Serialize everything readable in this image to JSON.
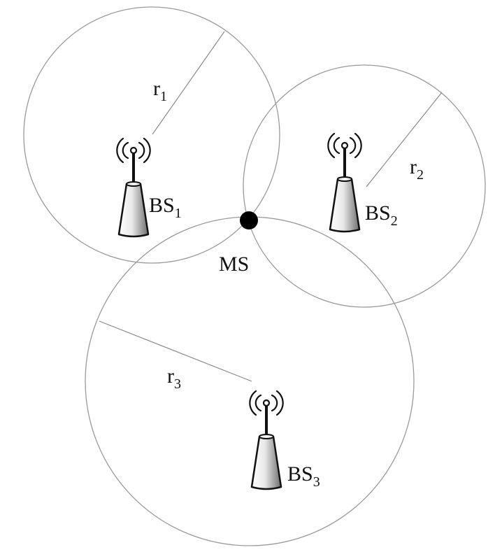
{
  "stations": [
    {
      "label": "BS",
      "subscript": "1",
      "radius_label": "r",
      "radius_subscript": "1"
    },
    {
      "label": "BS",
      "subscript": "2",
      "radius_label": "r",
      "radius_subscript": "2"
    },
    {
      "label": "BS",
      "subscript": "3",
      "radius_label": "r",
      "radius_subscript": "3"
    }
  ],
  "mobile_station": {
    "label": "MS"
  },
  "colors": {
    "circle_stroke": "#9a9a9a",
    "tower_fill_light": "#ffffff",
    "tower_fill_dark": "#6e6e6e",
    "ink": "#111111"
  },
  "icons": [
    "antenna-tower-icon"
  ]
}
